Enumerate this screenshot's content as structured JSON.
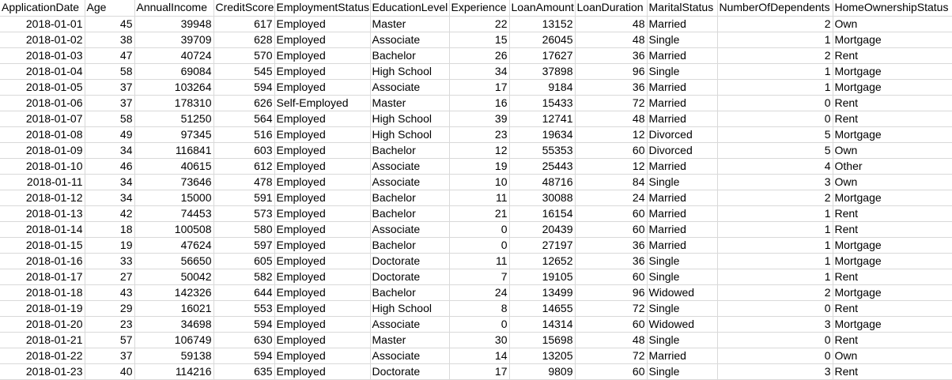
{
  "sheet": {
    "headers": [
      "ApplicationDate",
      "Age",
      "AnnualIncome",
      "CreditScore",
      "EmploymentStatus",
      "EducationLevel",
      "Experience",
      "LoanAmount",
      "LoanDuration",
      "MaritalStatus",
      "NumberOfDependents",
      "HomeOwnershipStatus"
    ],
    "rows": [
      [
        "2018-01-01",
        "45",
        "39948",
        "617",
        "Employed",
        "Master",
        "22",
        "13152",
        "48",
        "Married",
        "2",
        "Own"
      ],
      [
        "2018-01-02",
        "38",
        "39709",
        "628",
        "Employed",
        "Associate",
        "15",
        "26045",
        "48",
        "Single",
        "1",
        "Mortgage"
      ],
      [
        "2018-01-03",
        "47",
        "40724",
        "570",
        "Employed",
        "Bachelor",
        "26",
        "17627",
        "36",
        "Married",
        "2",
        "Rent"
      ],
      [
        "2018-01-04",
        "58",
        "69084",
        "545",
        "Employed",
        "High School",
        "34",
        "37898",
        "96",
        "Single",
        "1",
        "Mortgage"
      ],
      [
        "2018-01-05",
        "37",
        "103264",
        "594",
        "Employed",
        "Associate",
        "17",
        "9184",
        "36",
        "Married",
        "1",
        "Mortgage"
      ],
      [
        "2018-01-06",
        "37",
        "178310",
        "626",
        "Self-Employed",
        "Master",
        "16",
        "15433",
        "72",
        "Married",
        "0",
        "Rent"
      ],
      [
        "2018-01-07",
        "58",
        "51250",
        "564",
        "Employed",
        "High School",
        "39",
        "12741",
        "48",
        "Married",
        "0",
        "Rent"
      ],
      [
        "2018-01-08",
        "49",
        "97345",
        "516",
        "Employed",
        "High School",
        "23",
        "19634",
        "12",
        "Divorced",
        "5",
        "Mortgage"
      ],
      [
        "2018-01-09",
        "34",
        "116841",
        "603",
        "Employed",
        "Bachelor",
        "12",
        "55353",
        "60",
        "Divorced",
        "5",
        "Own"
      ],
      [
        "2018-01-10",
        "46",
        "40615",
        "612",
        "Employed",
        "Associate",
        "19",
        "25443",
        "12",
        "Married",
        "4",
        "Other"
      ],
      [
        "2018-01-11",
        "34",
        "73646",
        "478",
        "Employed",
        "Associate",
        "10",
        "48716",
        "84",
        "Single",
        "3",
        "Own"
      ],
      [
        "2018-01-12",
        "34",
        "15000",
        "591",
        "Employed",
        "Bachelor",
        "11",
        "30088",
        "24",
        "Married",
        "2",
        "Mortgage"
      ],
      [
        "2018-01-13",
        "42",
        "74453",
        "573",
        "Employed",
        "Bachelor",
        "21",
        "16154",
        "60",
        "Married",
        "1",
        "Rent"
      ],
      [
        "2018-01-14",
        "18",
        "100508",
        "580",
        "Employed",
        "Associate",
        "0",
        "20439",
        "60",
        "Married",
        "1",
        "Rent"
      ],
      [
        "2018-01-15",
        "19",
        "47624",
        "597",
        "Employed",
        "Bachelor",
        "0",
        "27197",
        "36",
        "Married",
        "1",
        "Mortgage"
      ],
      [
        "2018-01-16",
        "33",
        "56650",
        "605",
        "Employed",
        "Doctorate",
        "11",
        "12652",
        "36",
        "Single",
        "1",
        "Mortgage"
      ],
      [
        "2018-01-17",
        "27",
        "50042",
        "582",
        "Employed",
        "Doctorate",
        "7",
        "19105",
        "60",
        "Single",
        "1",
        "Rent"
      ],
      [
        "2018-01-18",
        "43",
        "142326",
        "644",
        "Employed",
        "Bachelor",
        "24",
        "13499",
        "96",
        "Widowed",
        "2",
        "Mortgage"
      ],
      [
        "2018-01-19",
        "29",
        "16021",
        "553",
        "Employed",
        "High School",
        "8",
        "14655",
        "72",
        "Single",
        "0",
        "Rent"
      ],
      [
        "2018-01-20",
        "23",
        "34698",
        "594",
        "Employed",
        "Associate",
        "0",
        "14314",
        "60",
        "Widowed",
        "3",
        "Mortgage"
      ],
      [
        "2018-01-21",
        "57",
        "106749",
        "630",
        "Employed",
        "Master",
        "30",
        "15698",
        "48",
        "Single",
        "0",
        "Rent"
      ],
      [
        "2018-01-22",
        "37",
        "59138",
        "594",
        "Employed",
        "Associate",
        "14",
        "13205",
        "72",
        "Married",
        "0",
        "Own"
      ],
      [
        "2018-01-23",
        "40",
        "114216",
        "635",
        "Employed",
        "Doctorate",
        "17",
        "9809",
        "60",
        "Single",
        "3",
        "Rent"
      ]
    ]
  }
}
